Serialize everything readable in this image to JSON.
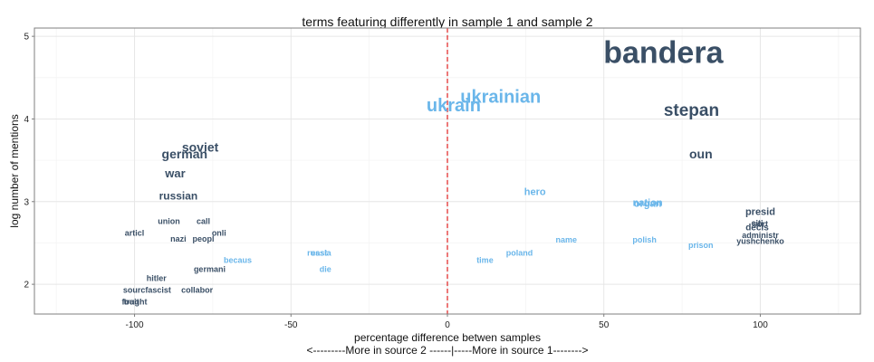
{
  "chart_data": {
    "type": "scatter",
    "title": "terms featuring differently in sample 1 and sample 2",
    "xlabel": "percentage difference betwen samples",
    "xlabel_sub": "<---------More in source 2 ------|-----More in source 1-------->",
    "ylabel": "log number of mentions",
    "xlim": [
      -132,
      132
    ],
    "ylim": [
      1.64,
      5.1
    ],
    "x_ticks": [
      -100,
      -50,
      0,
      50,
      100
    ],
    "y_ticks": [
      2,
      3,
      4,
      5
    ],
    "x_tick_labels": [
      "-100",
      "-50",
      "0",
      "50",
      "100"
    ],
    "y_tick_labels": [
      "2",
      "3",
      "4",
      "5"
    ],
    "grid": true,
    "reference_line_x": 0,
    "colors": {
      "source1": "#3a4f66",
      "source2": "#6ab6ea",
      "reference_line": "#e02020",
      "panel_border": "#7f7f7f"
    },
    "points": [
      {
        "term": "bandera",
        "x": 69,
        "y": 4.8,
        "size": 34,
        "color": "#3a4f66"
      },
      {
        "term": "stepan",
        "x": 78,
        "y": 4.1,
        "size": 19,
        "color": "#3a4f66"
      },
      {
        "term": "oun",
        "x": 81,
        "y": 3.58,
        "size": 14,
        "color": "#3a4f66"
      },
      {
        "term": "presid",
        "x": 100,
        "y": 2.87,
        "size": 11,
        "color": "#3a4f66"
      },
      {
        "term": "citi",
        "x": 99,
        "y": 2.74,
        "size": 9,
        "color": "#3a4f66"
      },
      {
        "term": "sort",
        "x": 100,
        "y": 2.73,
        "size": 9,
        "color": "#3a4f66"
      },
      {
        "term": "decis",
        "x": 99,
        "y": 2.68,
        "size": 10,
        "color": "#3a4f66"
      },
      {
        "term": "administr",
        "x": 100,
        "y": 2.59,
        "size": 9,
        "color": "#3a4f66"
      },
      {
        "term": "yushchenko",
        "x": 100,
        "y": 2.52,
        "size": 9,
        "color": "#3a4f66"
      },
      {
        "term": "soviet",
        "x": -79,
        "y": 3.66,
        "size": 14,
        "color": "#3a4f66"
      },
      {
        "term": "german",
        "x": -84,
        "y": 3.58,
        "size": 14,
        "color": "#3a4f66"
      },
      {
        "term": "war",
        "x": -87,
        "y": 3.34,
        "size": 13,
        "color": "#3a4f66"
      },
      {
        "term": "russian",
        "x": -86,
        "y": 3.07,
        "size": 12,
        "color": "#3a4f66"
      },
      {
        "term": "union",
        "x": -89,
        "y": 2.76,
        "size": 9,
        "color": "#3a4f66"
      },
      {
        "term": "call",
        "x": -78,
        "y": 2.76,
        "size": 9,
        "color": "#3a4f66"
      },
      {
        "term": "articl",
        "x": -100,
        "y": 2.62,
        "size": 9,
        "color": "#3a4f66"
      },
      {
        "term": "onli",
        "x": -73,
        "y": 2.62,
        "size": 9,
        "color": "#3a4f66"
      },
      {
        "term": "nazi",
        "x": -86,
        "y": 2.55,
        "size": 9,
        "color": "#3a4f66"
      },
      {
        "term": "peopl",
        "x": -78,
        "y": 2.55,
        "size": 9,
        "color": "#3a4f66"
      },
      {
        "term": "germani",
        "x": -76,
        "y": 2.18,
        "size": 9,
        "color": "#3a4f66"
      },
      {
        "term": "hitler",
        "x": -93,
        "y": 2.07,
        "size": 9,
        "color": "#3a4f66"
      },
      {
        "term": "sourcfascist",
        "x": -96,
        "y": 1.93,
        "size": 9,
        "color": "#3a4f66"
      },
      {
        "term": "collabor",
        "x": -80,
        "y": 1.93,
        "size": 9,
        "color": "#3a4f66"
      },
      {
        "term": "fought",
        "x": -100,
        "y": 1.79,
        "size": 9,
        "color": "#3a4f66"
      },
      {
        "term": "trait",
        "x": -101,
        "y": 1.79,
        "size": 9,
        "color": "#3a4f66"
      },
      {
        "term": "ukrain",
        "x": 2,
        "y": 4.16,
        "size": 20,
        "color": "#6ab6ea"
      },
      {
        "term": "ukrainian",
        "x": 17,
        "y": 4.26,
        "size": 20,
        "color": "#6ab6ea"
      },
      {
        "term": "hero",
        "x": 28,
        "y": 3.11,
        "size": 11,
        "color": "#6ab6ea"
      },
      {
        "term": "nation",
        "x": 64,
        "y": 2.98,
        "size": 11,
        "color": "#6ab6ea"
      },
      {
        "term": "organ",
        "x": 64,
        "y": 2.97,
        "size": 11,
        "color": "#6ab6ea"
      },
      {
        "term": "name",
        "x": 38,
        "y": 2.54,
        "size": 9,
        "color": "#6ab6ea"
      },
      {
        "term": "polish",
        "x": 63,
        "y": 2.54,
        "size": 9,
        "color": "#6ab6ea"
      },
      {
        "term": "prison",
        "x": 81,
        "y": 2.47,
        "size": 9,
        "color": "#6ab6ea"
      },
      {
        "term": "poland",
        "x": 23,
        "y": 2.38,
        "size": 9,
        "color": "#6ab6ea"
      },
      {
        "term": "time",
        "x": 12,
        "y": 2.29,
        "size": 9,
        "color": "#6ab6ea"
      },
      {
        "term": "russia",
        "x": -41,
        "y": 2.38,
        "size": 9,
        "color": "#6ab6ea"
      },
      {
        "term": "east",
        "x": -41,
        "y": 2.38,
        "size": 9,
        "color": "#6ab6ea"
      },
      {
        "term": "becaus",
        "x": -67,
        "y": 2.29,
        "size": 9,
        "color": "#6ab6ea"
      },
      {
        "term": "die",
        "x": -39,
        "y": 2.18,
        "size": 9,
        "color": "#6ab6ea"
      }
    ]
  }
}
